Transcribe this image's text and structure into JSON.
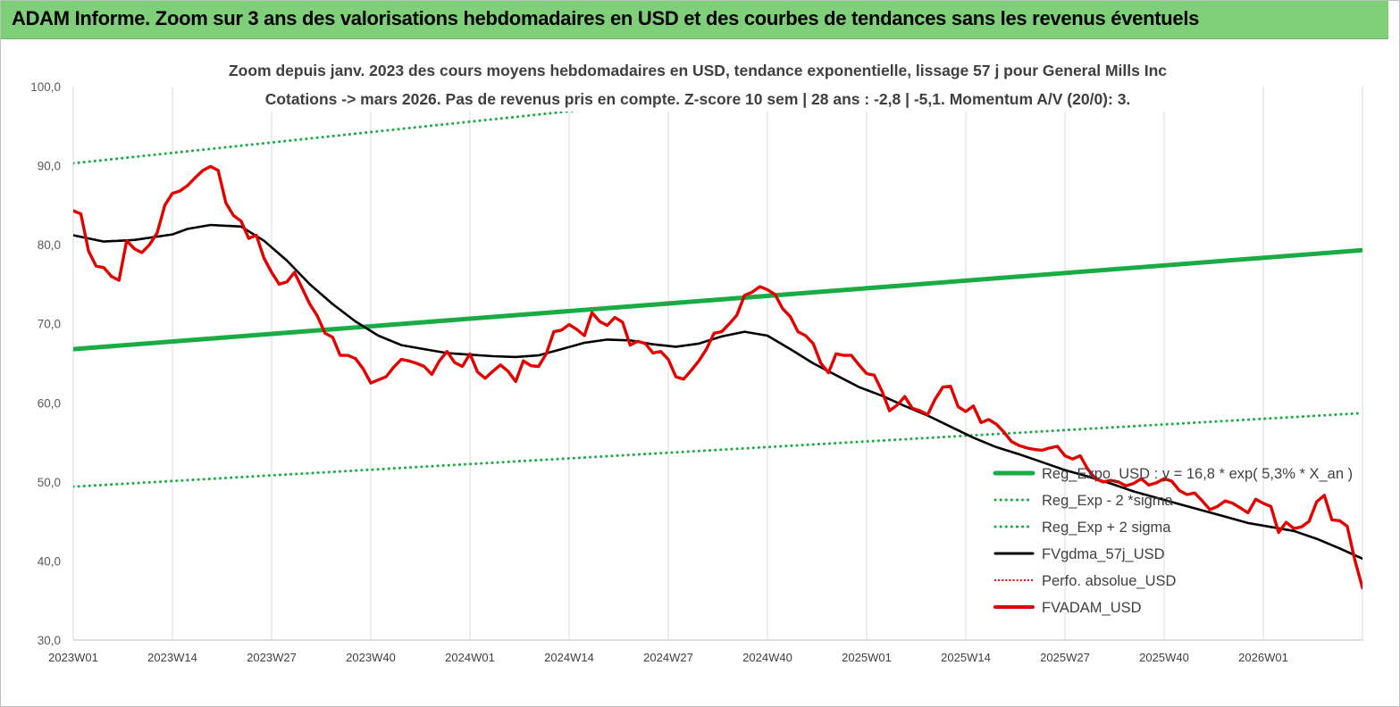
{
  "banner": {
    "title": "ADAM Informe. Zoom sur 3 ans des valorisations hebdomadaires en USD et des courbes de tendances sans les revenus éventuels"
  },
  "chart_data": {
    "type": "line",
    "title_line1": "Zoom depuis janv. 2023 des cours moyens hebdomadaires en USD, tendance exponentielle, lissage 57 j pour General Mills Inc",
    "title_line2": "Cotations -> mars 2026. Pas de revenus pris en  compte. Z-score 10 sem  | 28 ans : -2,8 | -5,1. Momentum A/V (20/0): 3.",
    "ylim": [
      30,
      100
    ],
    "yticks": [
      "30,0",
      "40,0",
      "50,0",
      "60,0",
      "70,0",
      "80,0",
      "90,0",
      "100,0"
    ],
    "xticks": [
      "2023W01",
      "2023W14",
      "2023W27",
      "2023W40",
      "2024W01",
      "2024W14",
      "2024W27",
      "2024W40",
      "2025W01",
      "2025W14",
      "2025W27",
      "2025W40",
      "2026W01"
    ],
    "x_range_weeks": [
      0,
      169
    ],
    "grid": "vertical",
    "legend_position": "right",
    "series": [
      {
        "name": "Reg_Expo_USD : y = 16,8 * exp( 5,3% *  X_an )",
        "color": "#1aab44",
        "style": "solid",
        "x": [
          0,
          169
        ],
        "y": [
          66.8,
          79.3
        ]
      },
      {
        "name": "Reg_Exp - 2 *sigma",
        "color": "#1aab44",
        "style": "dotted",
        "x": [
          0,
          169
        ],
        "y": [
          49.4,
          58.7
        ]
      },
      {
        "name": "Reg_Exp + 2 sigma",
        "color": "#1aab44",
        "style": "dotted",
        "x": [
          0,
          169
        ],
        "y": [
          90.3,
          107.4
        ]
      },
      {
        "name": "FVgdma_57j_USD",
        "color": "#000000",
        "style": "solid",
        "x": [
          0,
          4,
          8,
          13,
          15,
          18,
          22,
          25,
          28,
          31,
          34,
          37,
          40,
          43,
          46,
          49,
          52,
          55,
          58,
          61,
          64,
          67,
          70,
          73,
          76,
          79,
          82,
          85,
          88,
          91,
          94,
          97,
          100,
          103,
          106,
          109,
          112,
          115,
          118,
          121,
          124,
          127,
          130,
          133,
          136,
          139,
          142,
          145,
          148,
          151,
          154,
          157,
          160,
          163,
          166,
          169
        ],
        "y": [
          81.2,
          80.4,
          80.6,
          81.3,
          82.0,
          82.5,
          82.3,
          80.5,
          78.0,
          75.0,
          72.5,
          70.3,
          68.5,
          67.3,
          66.8,
          66.3,
          66.1,
          65.9,
          65.8,
          66.0,
          66.8,
          67.6,
          68.0,
          67.9,
          67.4,
          67.1,
          67.5,
          68.4,
          69.0,
          68.5,
          66.8,
          65.0,
          63.5,
          62.0,
          60.9,
          59.6,
          58.4,
          57.0,
          55.6,
          54.4,
          53.5,
          52.5,
          51.5,
          50.7,
          49.8,
          48.8,
          48.0,
          47.2,
          46.4,
          45.6,
          44.8,
          44.3,
          43.8,
          42.8,
          41.6,
          40.3
        ]
      },
      {
        "name": "Perfo. absolue_USD",
        "color": "#e00000",
        "style": "dotted",
        "x": [],
        "y": []
      },
      {
        "name": "FVADAM_USD",
        "color": "#e00000",
        "style": "solid",
        "x": [
          0,
          1,
          2,
          3,
          4,
          5,
          6,
          7,
          8,
          9,
          10,
          11,
          12,
          13,
          14,
          15,
          16,
          17,
          18,
          19,
          20,
          21,
          22,
          23,
          24,
          25,
          26,
          27,
          28,
          29,
          30,
          31,
          32,
          33,
          34,
          35,
          36,
          37,
          38,
          39,
          40,
          41,
          42,
          43,
          44,
          45,
          46,
          47,
          48,
          49,
          50,
          51,
          52,
          53,
          54,
          55,
          56,
          57,
          58,
          59,
          60,
          61,
          62,
          63,
          64,
          65,
          66,
          67,
          68,
          69,
          70,
          71,
          72,
          73,
          74,
          75,
          76,
          77,
          78,
          79,
          80,
          81,
          82,
          83,
          84,
          85,
          86,
          87,
          88,
          89,
          90,
          91,
          92,
          93,
          94,
          95,
          96,
          97,
          98,
          99,
          100,
          101,
          102,
          103,
          104,
          105,
          106,
          107,
          108,
          109,
          110,
          111,
          112,
          113,
          114,
          115,
          116,
          117,
          118,
          119,
          120,
          121,
          122,
          123,
          124,
          125,
          126,
          127,
          128,
          129,
          130,
          131,
          132,
          133,
          134,
          135,
          136,
          137,
          138,
          139,
          140,
          141,
          142,
          143,
          144,
          145,
          146,
          147,
          148,
          149,
          150,
          151,
          152,
          153,
          154,
          155,
          156,
          157,
          158,
          159,
          160,
          161,
          162,
          163,
          164,
          165,
          166,
          167,
          168,
          169
        ],
        "y": [
          84.3,
          83.9,
          79.2,
          77.3,
          77.1,
          76.0,
          75.5,
          80.5,
          79.5,
          79.0,
          80.0,
          81.5,
          85.0,
          86.5,
          86.8,
          87.5,
          88.5,
          89.4,
          89.9,
          89.4,
          85.3,
          83.7,
          83.0,
          80.8,
          81.2,
          78.3,
          76.5,
          75.0,
          75.3,
          76.5,
          74.5,
          72.5,
          71.0,
          68.8,
          68.3,
          66.0,
          66.0,
          65.6,
          64.3,
          62.5,
          62.9,
          63.3,
          64.5,
          65.5,
          65.3,
          65.0,
          64.6,
          63.6,
          65.3,
          66.5,
          65.1,
          64.6,
          66.2,
          63.9,
          63.1,
          64.0,
          64.8,
          64.0,
          62.7,
          65.3,
          64.7,
          64.6,
          66.2,
          69.0,
          69.2,
          69.9,
          69.3,
          68.5,
          71.4,
          70.3,
          69.8,
          70.8,
          70.2,
          67.3,
          67.8,
          67.5,
          66.3,
          66.5,
          65.5,
          63.3,
          63.0,
          64.1,
          65.3,
          66.8,
          68.8,
          69.0,
          70.0,
          71.1,
          73.6,
          74.0,
          74.7,
          74.3,
          73.7,
          71.9,
          70.9,
          69.0,
          68.5,
          67.5,
          65.0,
          63.8,
          66.2,
          66.0,
          66.0,
          64.8,
          63.7,
          63.5,
          61.5,
          59.0,
          59.7,
          60.8,
          59.3,
          59.0,
          58.5,
          60.5,
          62.0,
          62.1,
          59.5,
          58.9,
          59.6,
          57.5,
          57.9,
          57.3,
          56.3,
          55.1,
          54.6,
          54.3,
          54.1,
          54.0,
          54.3,
          54.5,
          53.3,
          52.9,
          53.3,
          51.6,
          50.4,
          50.0,
          50.2,
          50.0,
          49.5,
          49.8,
          50.4,
          49.6,
          49.9,
          50.4,
          50.1,
          48.9,
          48.4,
          48.6,
          47.6,
          46.5,
          46.9,
          47.6,
          47.3,
          46.7,
          46.1,
          47.8,
          47.3,
          46.9,
          43.6,
          44.9,
          44.1,
          44.3,
          45.0,
          47.5,
          48.3,
          45.2,
          45.1,
          44.4,
          40.1,
          36.6
        ]
      }
    ]
  }
}
